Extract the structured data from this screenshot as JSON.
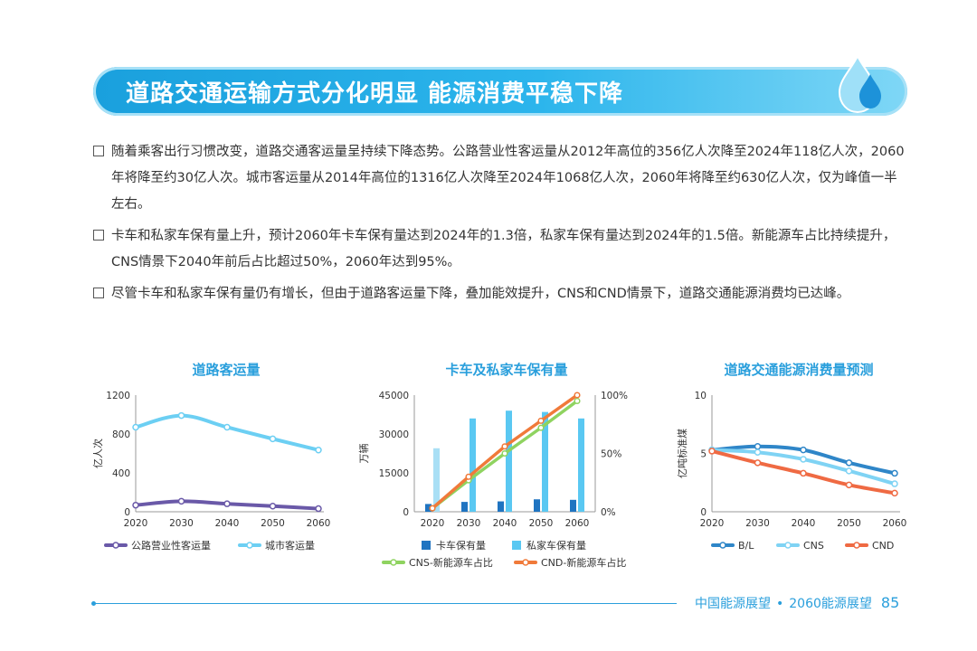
{
  "banner": {
    "title": "道路交通运输方式分化明显 能源消费平稳下降"
  },
  "bullets": [
    "随着乘客出行习惯改变，道路交通客运量呈持续下降态势。公路营业性客运量从2012年高位的356亿人次降至2024年118亿人次，2060年将降至约30亿人次。城市客运量从2014年高位的1316亿人次降至2024年1068亿人次，2060年将降至约630亿人次，仅为峰值一半左右。",
    "卡车和私家车保有量上升，预计2060年卡车保有量达到2024年的1.3倍，私家车保有量达到2024年的1.5倍。新能源车占比持续提升，CNS情景下2040年前后占比超过50%，2060年达到95%。",
    "尽管卡车和私家车保有量仍有增长，但由于道路客运量下降，叠加能效提升，CNS和CND情景下，道路交通能源消费均已达峰。"
  ],
  "chart_data": [
    {
      "type": "line",
      "title": "道路客运量",
      "ylabel": "亿人次",
      "x": [
        "2020",
        "2030",
        "2040",
        "2050",
        "2060"
      ],
      "ylim": [
        0,
        1200
      ],
      "yticks": [
        "0",
        "400",
        "800",
        "1200"
      ],
      "series": [
        {
          "name": "公路营业性客运量",
          "color": "#6a59a8",
          "values": [
            68,
            108,
            82,
            58,
            32
          ]
        },
        {
          "name": "城市客运量",
          "color": "#6ccff3",
          "values": [
            870,
            990,
            870,
            750,
            635
          ]
        }
      ]
    },
    {
      "type": "bar",
      "title": "卡车及私家车保有量",
      "ylabel": "万辆",
      "categories": [
        "2020",
        "2030",
        "2040",
        "2050",
        "2060"
      ],
      "ylim": [
        0,
        45000
      ],
      "yticks": [
        "0",
        "15000",
        "30000",
        "45000"
      ],
      "y2lim": [
        0,
        100
      ],
      "y2ticks": [
        "0%",
        "50%",
        "100%"
      ],
      "bars": [
        {
          "name": "卡车保有量",
          "color": "#1f74c1",
          "values": [
            3000,
            3800,
            4000,
            4800,
            4600
          ]
        },
        {
          "name": "私家车保有量",
          "color": "#5ac8f2",
          "values": [
            24500,
            36000,
            39000,
            38500,
            36000
          ]
        }
      ],
      "lines": [
        {
          "name": "CNS-新能源车占比",
          "color": "#8fd360",
          "values": [
            3,
            27,
            50,
            72,
            95
          ]
        },
        {
          "name": "CND-新能源车占比",
          "color": "#f07a3a",
          "values": [
            3,
            30,
            56,
            78,
            100
          ]
        }
      ]
    },
    {
      "type": "line",
      "title": "道路交通能源消费量预测",
      "ylabel": "亿吨标准煤",
      "x": [
        "2020",
        "2030",
        "2040",
        "2050",
        "2060"
      ],
      "ylim": [
        0,
        10
      ],
      "yticks": [
        "0",
        "5",
        "10"
      ],
      "series": [
        {
          "name": "B/L",
          "color": "#2f86c8",
          "values": [
            5.3,
            5.6,
            5.3,
            4.2,
            3.3
          ]
        },
        {
          "name": "CNS",
          "color": "#7fd3f4",
          "values": [
            5.3,
            5.1,
            4.5,
            3.5,
            2.4
          ]
        },
        {
          "name": "CND",
          "color": "#ef6a43",
          "values": [
            5.2,
            4.2,
            3.3,
            2.3,
            1.6
          ]
        }
      ]
    }
  ],
  "footer": {
    "report": "中国能源展望",
    "separator": "•",
    "edition": "2060能源展望",
    "page": "85"
  }
}
